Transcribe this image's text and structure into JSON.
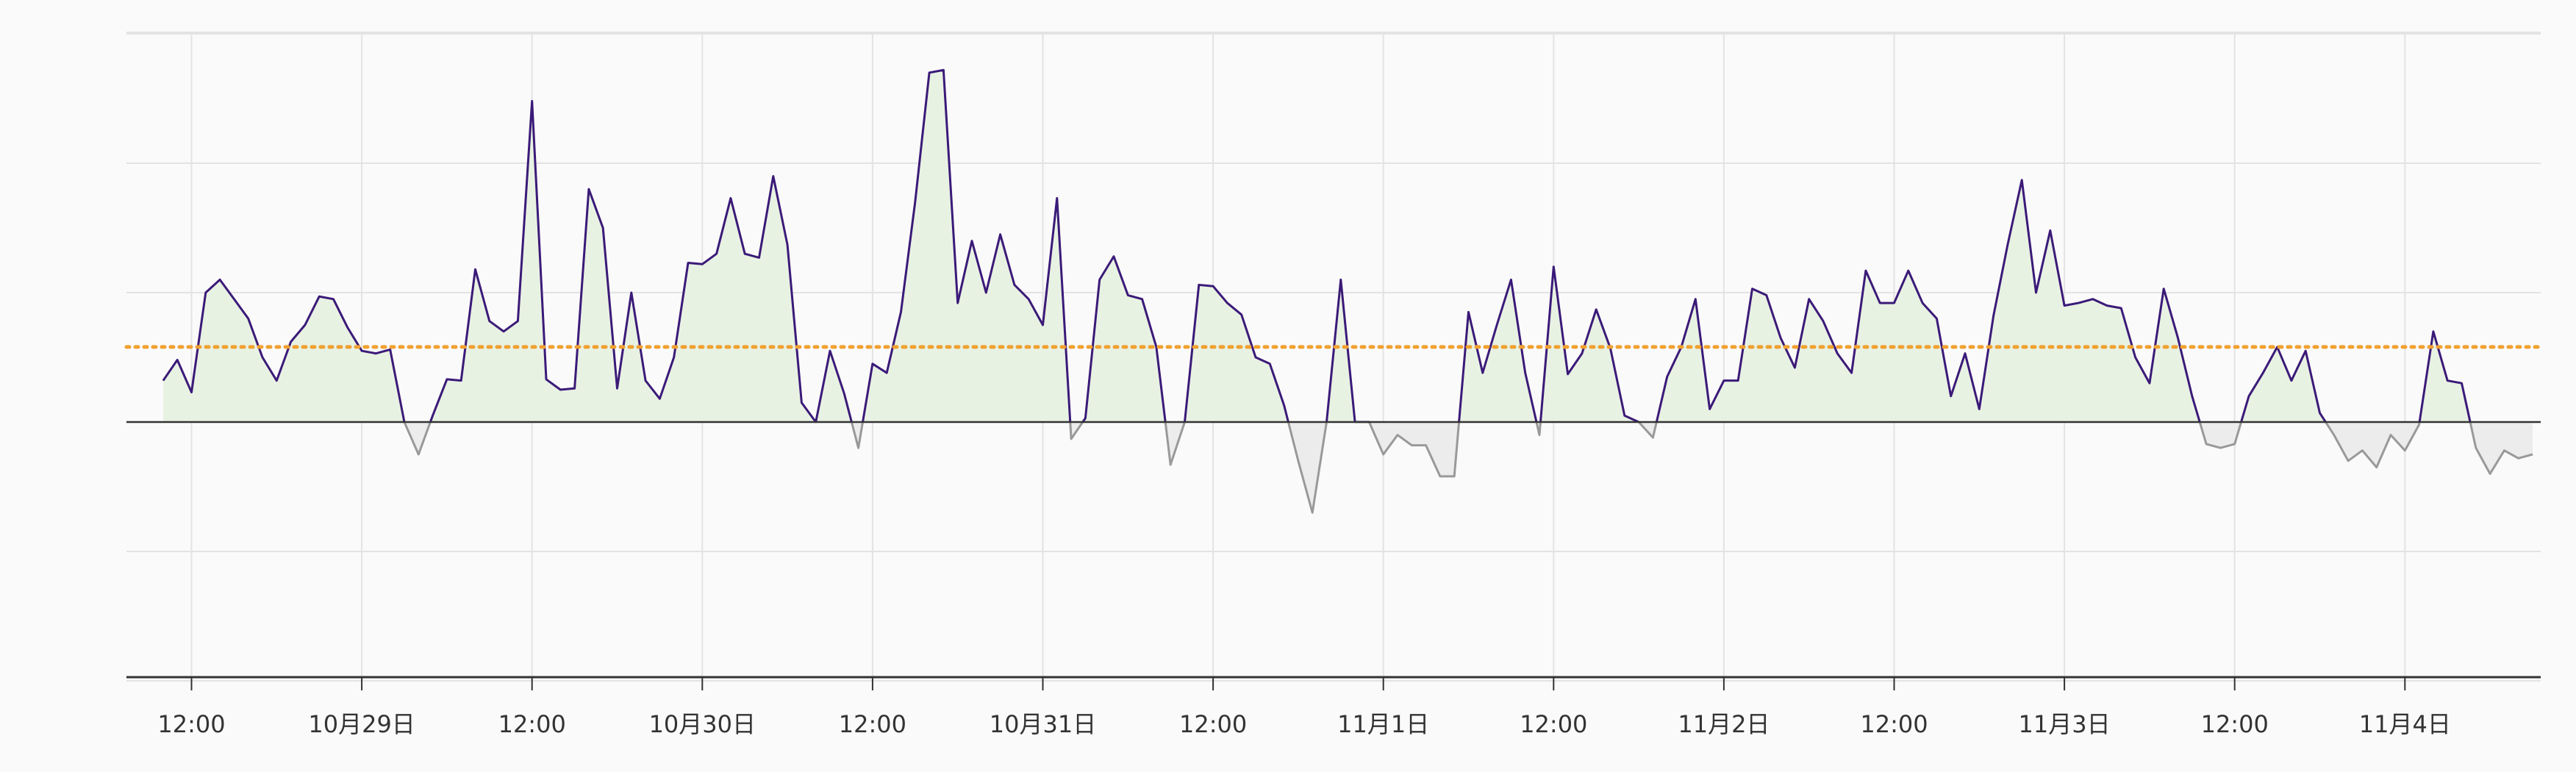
{
  "colors": {
    "background": "#fafafa",
    "grid": "#e3e3e3",
    "axis": "#333333",
    "line_above": "#3b1a78",
    "line_below": "#999999",
    "fill_above": "#e8f2e3",
    "fill_below": "#ececec",
    "reference": "#f0a030"
  },
  "chart_data": {
    "type": "area",
    "title": "",
    "xlabel": "",
    "ylabel": "",
    "y_tick_labels_shown": false,
    "grid": true,
    "y_gridlines": [
      -2,
      -1,
      1,
      2,
      3
    ],
    "ylim": [
      -2,
      3
    ],
    "baseline": 0,
    "reference_line": {
      "value": 0.58,
      "style": "dotted"
    },
    "xlim": [
      "10月28日 07:36",
      "11月4日 17:12"
    ],
    "x_ticks": [
      "12:00",
      "10月29日",
      "12:00",
      "10月30日",
      "12:00",
      "10月31日",
      "12:00",
      "11月1日",
      "12:00",
      "11月2日",
      "12:00",
      "11月3日",
      "12:00",
      "11月4日"
    ],
    "series": [
      {
        "x_start": "10月28日 10:00",
        "interval_hours": 1,
        "values": [
          0.32,
          0.48,
          0.23,
          1.0,
          1.1,
          0.95,
          0.8,
          0.5,
          0.32,
          0.62,
          0.75,
          0.97,
          0.95,
          0.73,
          0.55,
          0.53,
          0.56,
          0.0,
          -0.25,
          0.05,
          0.33,
          0.32,
          1.18,
          0.78,
          0.7,
          0.78,
          2.48,
          0.33,
          0.25,
          0.26,
          1.8,
          1.5,
          0.26,
          1.0,
          0.32,
          0.18,
          0.5,
          1.23,
          1.22,
          1.3,
          1.73,
          1.3,
          1.27,
          1.9,
          1.37,
          0.15,
          0.0,
          0.55,
          0.22,
          -0.2,
          0.45,
          0.38,
          0.85,
          1.7,
          2.7,
          2.72,
          0.92,
          1.4,
          1.0,
          1.45,
          1.06,
          0.95,
          0.75,
          1.73,
          -0.13,
          0.03,
          1.1,
          1.28,
          0.98,
          0.95,
          0.58,
          -0.33,
          0.0,
          1.06,
          1.05,
          0.92,
          0.83,
          0.5,
          0.45,
          0.13,
          -0.3,
          -0.7,
          0.0,
          1.1,
          0.0,
          0.0,
          -0.25,
          -0.1,
          -0.18,
          -0.18,
          -0.42,
          -0.42,
          0.85,
          0.38,
          0.75,
          1.1,
          0.38,
          -0.1,
          1.2,
          0.37,
          0.53,
          0.87,
          0.57,
          0.05,
          0.0,
          -0.12,
          0.35,
          0.58,
          0.95,
          0.1,
          0.32,
          0.32,
          1.03,
          0.98,
          0.65,
          0.42,
          0.95,
          0.78,
          0.53,
          0.38,
          1.17,
          0.92,
          0.92,
          1.17,
          0.92,
          0.8,
          0.2,
          0.53,
          0.1,
          0.82,
          1.37,
          1.87,
          1.0,
          1.48,
          0.9,
          0.92,
          0.95,
          0.9,
          0.88,
          0.5,
          0.3,
          1.03,
          0.65,
          0.2,
          -0.17,
          -0.2,
          -0.17,
          0.2,
          0.38,
          0.58,
          0.32,
          0.55,
          0.07,
          -0.1,
          -0.3,
          -0.22,
          -0.35,
          -0.1,
          -0.22,
          -0.02,
          0.7,
          0.32,
          0.3,
          -0.2,
          -0.4,
          -0.22,
          -0.28,
          -0.25
        ]
      }
    ]
  }
}
